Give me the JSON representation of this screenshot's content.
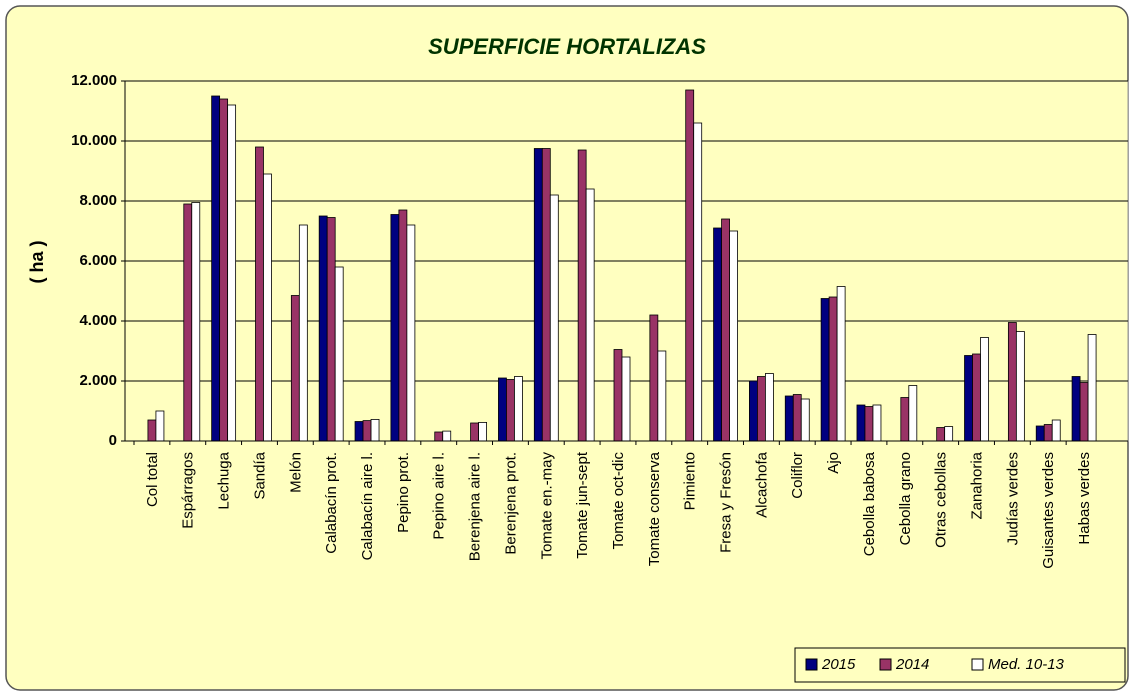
{
  "chart_data": {
    "type": "bar",
    "title": "SUPERFICIE HORTALIZAS",
    "y_label": "( ha )",
    "categories": [
      "Col total",
      "Espárragos",
      "Lechuga",
      "Sandía",
      "Melón",
      "Calabacín prot.",
      "Calabacín aire l.",
      "Pepino prot.",
      "Pepino aire l.",
      "Berenjena aire l.",
      "Berenjena prot.",
      "Tomate en.-may",
      "Tomate jun-sept",
      "Tomate oct-dic",
      "Tomate conserva",
      "Pimiento",
      "Fresa y Fresón",
      "Alcachofa",
      "Coliflor",
      "Ajo",
      "Cebolla babosa",
      "Cebolla grano",
      "Otras cebollas",
      "Zanahoria",
      "Judías verdes",
      "Guisantes verdes",
      "Habas verdes"
    ],
    "series": [
      {
        "name": "2015",
        "color": "#000080",
        "values": [
          null,
          null,
          11500,
          null,
          null,
          7500,
          650,
          7550,
          null,
          null,
          2100,
          9750,
          null,
          null,
          null,
          null,
          7100,
          2000,
          1500,
          4750,
          1200,
          null,
          null,
          2850,
          null,
          500,
          2150
        ]
      },
      {
        "name": "2014",
        "color": "#993366",
        "values": [
          700,
          7900,
          11400,
          9800,
          4850,
          7450,
          680,
          7700,
          300,
          600,
          2050,
          9750,
          9700,
          3050,
          4200,
          11700,
          7400,
          2150,
          1550,
          4800,
          1150,
          1450,
          450,
          2900,
          3950,
          550,
          1950
        ]
      },
      {
        "name": "Med. 10-13",
        "color": "#ffffff",
        "values": [
          1000,
          7950,
          11200,
          8900,
          7200,
          5800,
          720,
          7200,
          330,
          620,
          2150,
          8200,
          8400,
          2800,
          3000,
          10600,
          7000,
          2250,
          1400,
          5150,
          1200,
          1850,
          480,
          3450,
          3650,
          700,
          3550
        ]
      }
    ],
    "ylim": [
      0,
      12000
    ],
    "yticks": [
      0,
      {
        "value": 2000,
        "label": "2.000"
      },
      {
        "value": 4000,
        "label": "4.000"
      },
      {
        "value": 6000,
        "label": "6.000"
      },
      {
        "value": 8000,
        "label": "8.000"
      },
      {
        "value": 10000,
        "label": "10.000"
      },
      {
        "value": 12000,
        "label": "12.000"
      }
    ],
    "grid": true,
    "legend": "bottom-right"
  }
}
